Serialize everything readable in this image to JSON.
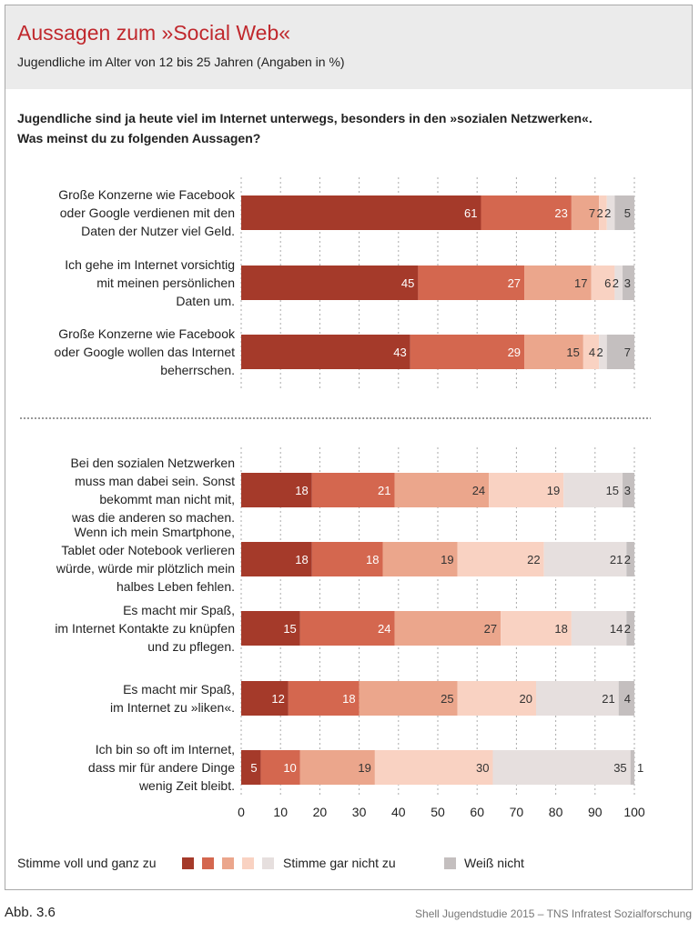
{
  "header": {
    "title": "Aussagen zum »Social Web«",
    "subtitle": "Jugendliche im Alter von 12 bis 25 Jahren (Angaben in %)"
  },
  "question": [
    "Jugendliche sind ja heute viel im Internet unterwegs, besonders in den »sozialen Netzwerken«.",
    "Was meinst du zu folgenden Aussagen?"
  ],
  "chart_data": {
    "type": "bar",
    "orientation": "horizontal",
    "stacked": true,
    "xlim": [
      0,
      100
    ],
    "xticks": [
      0,
      10,
      20,
      30,
      40,
      50,
      60,
      70,
      80,
      90,
      100
    ],
    "grid": true,
    "categories": [
      "Große Konzerne wie Facebook oder Google verdienen mit den Daten der Nutzer viel Geld.",
      "Ich gehe im Internet vorsichtig mit meinen persönlichen Daten um.",
      "Große Konzerne wie Facebook oder Google wollen das Internet beherrschen.",
      "Bei den sozialen Netzwerken muss man dabei sein. Sonst bekommt man nicht mit, was die anderen so machen.",
      "Wenn ich mein Smartphone, Tablet oder Notebook verlieren würde, würde mir plötzlich mein halbes Leben fehlen.",
      "Es macht mir Spaß, im Internet Kontakte zu knüpfen und zu pflegen.",
      "Es macht mir Spaß, im Internet zu »liken«.",
      "Ich bin so oft im Internet, dass mir für andere Dinge wenig Zeit bleibt."
    ],
    "category_lines": [
      [
        "Große Konzerne wie Facebook",
        "oder Google verdienen mit den",
        "Daten der Nutzer viel Geld."
      ],
      [
        "Ich gehe im Internet vorsichtig",
        "mit meinen persönlichen",
        "Daten um."
      ],
      [
        "Große Konzerne wie Facebook",
        "oder Google wollen das Internet",
        "beherrschen."
      ],
      [
        "Bei den sozialen Netzwerken",
        "muss man dabei sein. Sonst",
        "bekommt man nicht mit,",
        "was die anderen so machen."
      ],
      [
        "Wenn ich mein Smartphone,",
        "Tablet oder Notebook verlieren",
        "würde, würde mir plötzlich mein",
        "halbes Leben fehlen."
      ],
      [
        "Es macht mir Spaß,",
        "im Internet Kontakte zu knüpfen",
        "und zu pflegen."
      ],
      [
        "Es macht mir Spaß,",
        "im Internet zu »liken«."
      ],
      [
        "Ich bin so oft im Internet,",
        "dass mir für andere Dinge",
        "wenig Zeit bleibt."
      ]
    ],
    "series": [
      {
        "color": "#a53a2a",
        "values": [
          61,
          45,
          43,
          18,
          18,
          15,
          12,
          5
        ]
      },
      {
        "color": "#d4674f",
        "values": [
          23,
          27,
          29,
          21,
          18,
          24,
          18,
          10
        ]
      },
      {
        "color": "#eba68c",
        "values": [
          7,
          17,
          15,
          24,
          19,
          27,
          25,
          19
        ]
      },
      {
        "color": "#f9d2c2",
        "values": [
          2,
          6,
          4,
          19,
          22,
          18,
          20,
          30
        ]
      },
      {
        "color": "#e6dfde",
        "values": [
          2,
          2,
          2,
          15,
          21,
          14,
          21,
          35
        ]
      },
      {
        "color": "#c4bfbf",
        "values": [
          5,
          3,
          7,
          3,
          2,
          2,
          4,
          1
        ]
      }
    ],
    "legend": {
      "position": "bottom",
      "left_label": "Stimme voll und ganz zu",
      "right_label": "Stimme gar nicht zu",
      "unknown_label": "Weiß nicht"
    }
  },
  "footer": {
    "figure": "Abb. 3.6",
    "source": "Shell Jugendstudie 2015 – TNS Infratest Sozialforschung"
  }
}
